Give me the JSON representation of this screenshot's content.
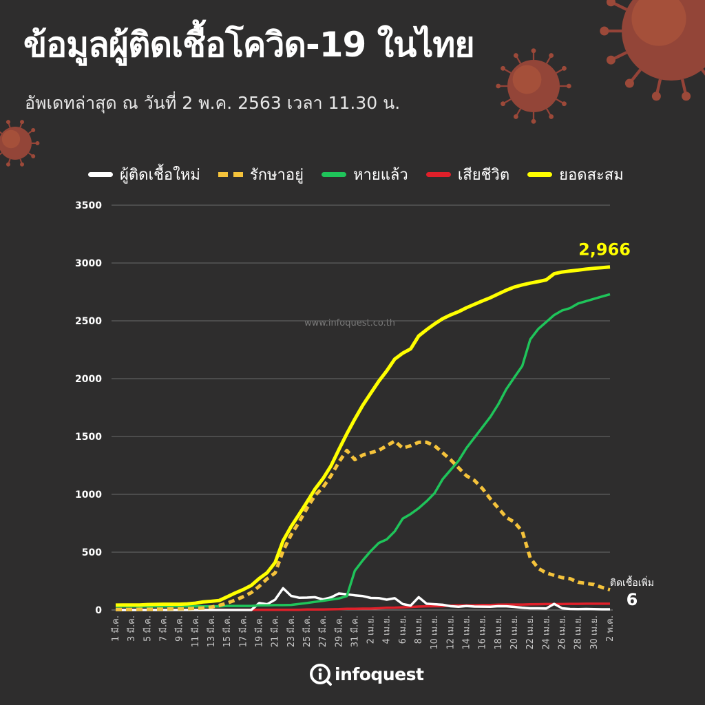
{
  "title": "ข้อมูลผู้ติดเชื้อโควิด-19 ในไทย",
  "subtitle": "อัพเดทล่าสุด ณ วันที่  2 พ.ค. 2563 เวลา 11.30 น.",
  "watermark": "www.infoquest.co.th",
  "logo_text": "infoquest",
  "colors": {
    "background": "#2e2d2d",
    "new_cases": "#ffffff",
    "active": "#f5c33b",
    "recovered": "#1fc45a",
    "deaths": "#e0202a",
    "cumulative": "#ffff00"
  },
  "chart_data": {
    "type": "line",
    "x": [
      "1 มี.ค.",
      "2 มี.ค.",
      "3 มี.ค.",
      "4 มี.ค.",
      "5 มี.ค.",
      "6 มี.ค.",
      "7 มี.ค.",
      "8 มี.ค.",
      "9 มี.ค.",
      "10 มี.ค.",
      "11 มี.ค.",
      "12 มี.ค.",
      "13 มี.ค.",
      "14 มี.ค.",
      "15 มี.ค.",
      "16 มี.ค.",
      "17 มี.ค.",
      "18 มี.ค.",
      "19 มี.ค.",
      "20 มี.ค.",
      "21 มี.ค.",
      "22 มี.ค.",
      "23 มี.ค.",
      "24 มี.ค.",
      "25 มี.ค.",
      "26 มี.ค.",
      "27 มี.ค.",
      "28 มี.ค.",
      "29 มี.ค.",
      "30 มี.ค.",
      "31 มี.ค.",
      "1 เม.ย.",
      "2 เม.ย.",
      "3 เม.ย.",
      "4 เม.ย.",
      "5 เม.ย.",
      "6 เม.ย.",
      "7 เม.ย.",
      "8 เม.ย.",
      "9 เม.ย.",
      "10 เม.ย.",
      "11 เม.ย.",
      "12 เม.ย.",
      "13 เม.ย.",
      "14 เม.ย.",
      "15 เม.ย.",
      "16 เม.ย.",
      "17 เม.ย.",
      "18 เม.ย.",
      "19 เม.ย.",
      "20 เม.ย.",
      "21 เม.ย.",
      "22 เม.ย.",
      "23 เม.ย.",
      "24 เม.ย.",
      "25 เม.ย.",
      "26 เม.ย.",
      "27 เม.ย.",
      "28 เม.ย.",
      "29 เม.ย.",
      "30 เม.ย.",
      "1 พ.ค.",
      "2 พ.ค."
    ],
    "tick_labels": [
      "1 มี.ค.",
      "3 มี.ค.",
      "5 มี.ค.",
      "7 มี.ค.",
      "9 มี.ค.",
      "11 มี.ค.",
      "13 มี.ค.",
      "15 มี.ค.",
      "17 มี.ค.",
      "19 มี.ค.",
      "21 มี.ค.",
      "23 มี.ค.",
      "25 มี.ค.",
      "27 มี.ค.",
      "29 มี.ค.",
      "31 มี.ค.",
      "2 เม.ย.",
      "4 เม.ย.",
      "6 เม.ย.",
      "8 เม.ย.",
      "10 เม.ย.",
      "12 เม.ย.",
      "14 เม.ย.",
      "16 เม.ย.",
      "18 เม.ย.",
      "20 เม.ย.",
      "22 เม.ย.",
      "24 เม.ย.",
      "26 เม.ย.",
      "28 เม.ย.",
      "30 เม.ย.",
      "2 พ.ค."
    ],
    "yticks": [
      0,
      500,
      1000,
      1500,
      2000,
      2500,
      3000,
      3500
    ],
    "ylim": [
      0,
      3500
    ],
    "grid": "horizontal",
    "legend_position": "top",
    "series": [
      {
        "key": "new_cases",
        "name": "ผู้ติดเชื้อใหม่",
        "style": "solid",
        "values": [
          0,
          0,
          0,
          0,
          0,
          0,
          0,
          0,
          0,
          0,
          0,
          0,
          0,
          0,
          0,
          0,
          0,
          0,
          60,
          50,
          89,
          188,
          122,
          106,
          107,
          111,
          91,
          109,
          143,
          136,
          127,
          120,
          104,
          103,
          89,
          102,
          51,
          38,
          111,
          54,
          50,
          45,
          33,
          28,
          34,
          30,
          29,
          28,
          33,
          32,
          27,
          19,
          15,
          15,
          13,
          53,
          15,
          9,
          7,
          9,
          7,
          6,
          6
        ]
      },
      {
        "key": "active",
        "name": "รักษาอยู่",
        "style": "dashed",
        "values": [
          5,
          5,
          5,
          6,
          6,
          7,
          8,
          10,
          10,
          12,
          14,
          18,
          25,
          40,
          60,
          85,
          115,
          150,
          205,
          270,
          320,
          511,
          650,
          760,
          880,
          990,
          1060,
          1160,
          1280,
          1380,
          1300,
          1340,
          1360,
          1380,
          1420,
          1460,
          1400,
          1420,
          1450,
          1450,
          1420,
          1360,
          1300,
          1230,
          1160,
          1120,
          1050,
          960,
          880,
          800,
          760,
          680,
          450,
          360,
          320,
          300,
          280,
          270,
          240,
          230,
          220,
          195,
          175
        ]
      },
      {
        "key": "recovered",
        "name": "หายแล้ว",
        "style": "solid",
        "values": [
          31,
          31,
          31,
          31,
          31,
          31,
          31,
          31,
          31,
          31,
          31,
          31,
          31,
          31,
          35,
          35,
          35,
          35,
          40,
          40,
          42,
          42,
          44,
          52,
          61,
          70,
          79,
          90,
          100,
          120,
          340,
          430,
          510,
          580,
          610,
          680,
          790,
          830,
          880,
          940,
          1010,
          1130,
          1210,
          1290,
          1400,
          1490,
          1580,
          1670,
          1780,
          1910,
          2010,
          2110,
          2340,
          2430,
          2490,
          2550,
          2590,
          2610,
          2650,
          2670,
          2690,
          2710,
          2730
        ]
      },
      {
        "key": "deaths",
        "name": "เสียชีวิต",
        "style": "solid",
        "values": [
          1,
          1,
          1,
          1,
          1,
          1,
          1,
          1,
          1,
          1,
          1,
          1,
          1,
          1,
          1,
          1,
          1,
          1,
          1,
          1,
          1,
          1,
          1,
          1,
          4,
          4,
          5,
          6,
          7,
          10,
          10,
          12,
          12,
          15,
          19,
          20,
          23,
          26,
          30,
          32,
          33,
          33,
          38,
          40,
          40,
          41,
          43,
          43,
          46,
          47,
          47,
          47,
          49,
          50,
          51,
          51,
          51,
          53,
          53,
          54,
          54,
          54,
          54
        ]
      },
      {
        "key": "cumulative",
        "name": "ยอดสะสม",
        "style": "solid",
        "values": [
          42,
          43,
          43,
          43,
          47,
          48,
          50,
          50,
          50,
          53,
          59,
          70,
          75,
          82,
          114,
          147,
          177,
          212,
          272,
          322,
          411,
          599,
          721,
          827,
          934,
          1045,
          1136,
          1245,
          1388,
          1524,
          1651,
          1771,
          1875,
          1978,
          2067,
          2169,
          2220,
          2258,
          2369,
          2423,
          2473,
          2518,
          2551,
          2579,
          2613,
          2643,
          2672,
          2700,
          2733,
          2765,
          2792,
          2811,
          2826,
          2839,
          2854,
          2907,
          2922,
          2931,
          2938,
          2947,
          2954,
          2960,
          2966
        ]
      }
    ],
    "annotations": [
      {
        "key": "latest_total",
        "text": "2,966",
        "series": "cumulative"
      },
      {
        "key": "latest_new_label",
        "text": "ติดเชื้อเพิ่ม",
        "series": "new_cases"
      },
      {
        "key": "latest_new_value",
        "text": "6",
        "series": "new_cases"
      }
    ]
  }
}
